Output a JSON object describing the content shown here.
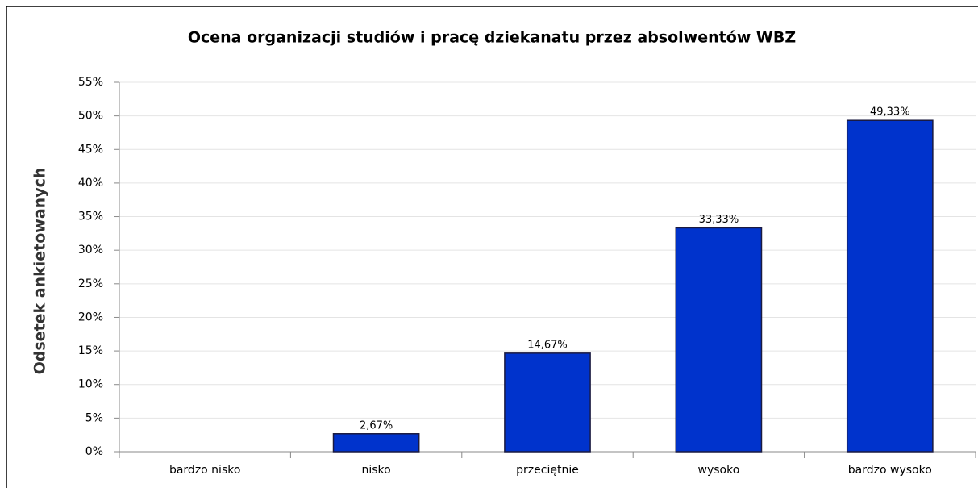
{
  "chart_data": {
    "type": "bar",
    "title": "Ocena organizacji studiów i pracę dziekanatu przez absolwentów WBZ",
    "y_label": "Odsetek ankietowanych",
    "categories": [
      "bardzo nisko",
      "nisko",
      "przeciętnie",
      "wysoko",
      "bardzo wysoko"
    ],
    "values": [
      0,
      2.67,
      14.67,
      33.33,
      49.33
    ],
    "value_labels": [
      null,
      "2,67%",
      "14,67%",
      "33,33%",
      "49,33%"
    ],
    "color": "#0033cc",
    "ylim": [
      0,
      55
    ],
    "yticks": [
      {
        "value": 0,
        "label": "0%"
      },
      {
        "value": 5,
        "label": "5%"
      },
      {
        "value": 10,
        "label": "10%"
      },
      {
        "value": 15,
        "label": "15%"
      },
      {
        "value": 20,
        "label": "20%"
      },
      {
        "value": 25,
        "label": "25%"
      },
      {
        "value": 30,
        "label": "30%"
      },
      {
        "value": 35,
        "label": "35%"
      },
      {
        "value": 40,
        "label": "40%"
      },
      {
        "value": 45,
        "label": "45%"
      },
      {
        "value": 50,
        "label": "50%"
      },
      {
        "value": 55,
        "label": "55%"
      }
    ],
    "grid": true
  }
}
